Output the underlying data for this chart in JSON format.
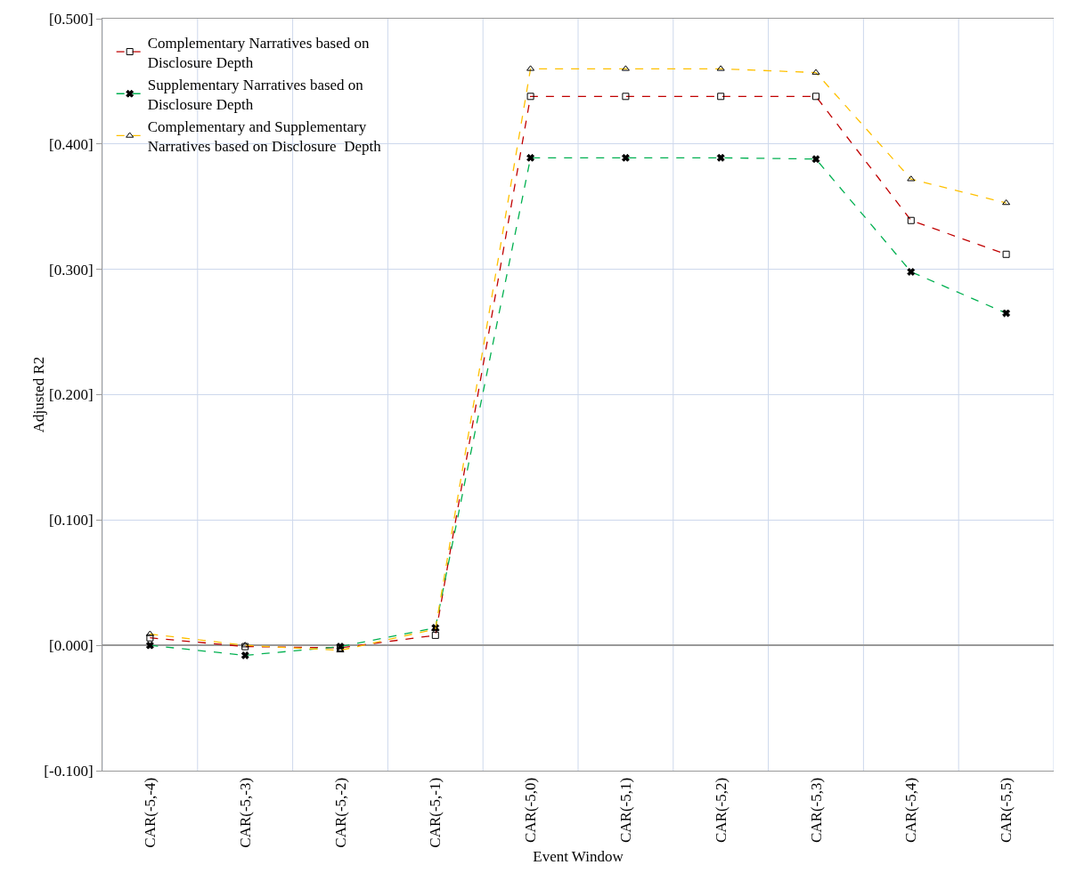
{
  "chart_data": {
    "type": "line",
    "xlabel": "Event Window",
    "ylabel": "Adjusted R2",
    "categories": [
      "CAR(-5,-4)",
      "CAR(-5,-3)",
      "CAR(-5,-2)",
      "CAR(-5,-1)",
      "CAR(-5,0)",
      "CAR(-5,1)",
      "CAR(-5,2)",
      "CAR(-5,3)",
      "CAR(-5,4)",
      "CAR(-5,5)"
    ],
    "series": [
      {
        "name": "Complementary Narratives based on Disclosure Depth",
        "color": "#c00000",
        "marker": "square",
        "values": [
          0.006,
          -0.001,
          -0.002,
          0.008,
          0.438,
          0.438,
          0.438,
          0.438,
          0.339,
          0.312
        ]
      },
      {
        "name": "Supplementary Narratives based on Disclosure Depth",
        "color": "#00b050",
        "marker": "cross",
        "values": [
          0.0,
          -0.008,
          -0.001,
          0.014,
          0.389,
          0.389,
          0.389,
          0.388,
          0.298,
          0.265
        ]
      },
      {
        "name": "Complementary and Supplementary Narratives based on Disclosure  Depth",
        "color": "#ffc000",
        "marker": "triangle",
        "values": [
          0.009,
          0.0,
          -0.004,
          0.013,
          0.46,
          0.46,
          0.46,
          0.457,
          0.372,
          0.353
        ]
      }
    ],
    "ylim": [
      -0.1,
      0.5
    ],
    "yticks": [
      {
        "value": -0.1,
        "label": "[-0.100]"
      },
      {
        "value": 0,
        "label": "[0.000]"
      },
      {
        "value": 0.1,
        "label": "[0.100]"
      },
      {
        "value": 0.2,
        "label": "[0.200]"
      },
      {
        "value": 0.3,
        "label": "[0.300]"
      },
      {
        "value": 0.4,
        "label": "[0.400]"
      },
      {
        "value": 0.5,
        "label": "[0.500]"
      }
    ],
    "grid": true,
    "legend": "top left",
    "line_style": "dashed"
  }
}
